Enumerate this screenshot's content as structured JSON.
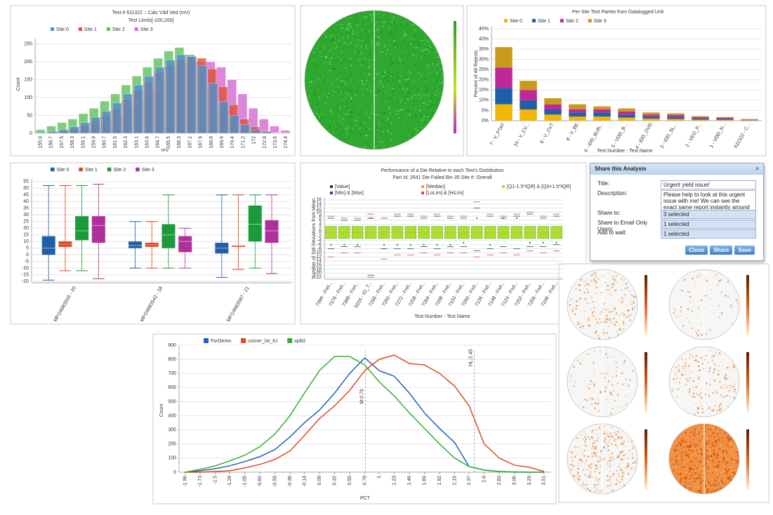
{
  "chart_data": [
    {
      "type": "bar",
      "title": "Test # 611322 :: Calc Vdd Ved (mV)",
      "subtitle": "Test Limits[-100,200]",
      "x_label": "mV",
      "y_label": "Count",
      "categories": [
        "155.9",
        "156.7",
        "157.5",
        "158.3",
        "159.1",
        "159.9",
        "160.7",
        "161.5",
        "162.3",
        "163.1",
        "163.9",
        "164.7",
        "165.5",
        "166.3",
        "167.1",
        "167.9",
        "168.8",
        "169.6",
        "170.4",
        "171.2",
        "172",
        "172.8",
        "173.6",
        "174.4"
      ],
      "series": [
        {
          "name": "Site 0",
          "color": "#4f8fd0",
          "values": [
            2,
            5,
            10,
            18,
            30,
            45,
            62,
            85,
            110,
            135,
            160,
            185,
            205,
            220,
            215,
            190,
            140,
            90,
            50,
            25,
            10,
            4,
            1,
            0
          ]
        },
        {
          "name": "Site 1",
          "color": "#e0503a",
          "values": [
            1,
            3,
            6,
            12,
            22,
            35,
            50,
            70,
            95,
            120,
            145,
            170,
            190,
            205,
            215,
            210,
            180,
            130,
            80,
            40,
            18,
            6,
            2,
            1
          ]
        },
        {
          "name": "Site 2",
          "color": "#5cc05c",
          "values": [
            10,
            20,
            30,
            40,
            55,
            70,
            90,
            110,
            135,
            160,
            185,
            210,
            230,
            240,
            220,
            180,
            130,
            80,
            45,
            22,
            10,
            5,
            2,
            1
          ]
        },
        {
          "name": "Site 3",
          "color": "#d368d3",
          "values": [
            0,
            1,
            2,
            4,
            8,
            14,
            22,
            35,
            50,
            70,
            95,
            120,
            150,
            175,
            195,
            200,
            200,
            185,
            150,
            110,
            70,
            40,
            20,
            8
          ]
        }
      ],
      "ylim": [
        0,
        265
      ],
      "yticks": [
        0,
        50,
        100,
        150,
        200,
        250
      ],
      "grid": true
    },
    {
      "type": "stacked_bar",
      "title": "Per Site Test Pareto from Datalogged Unit",
      "x_label": "Test Number - Test Name",
      "y_label": "Percent of All Rejects",
      "categories": [
        "7 - V_PTAT",
        "10 - V_CV...",
        "9 - V_CVT",
        "8 - V_BE",
        "6 - IDD_BUR...",
        "5 - VDD_B...",
        "4 - IDD_OVD",
        "3 - IDD_SL...",
        "2 - VEO_P...",
        "1 - VDD_N...",
        "611322 - C..."
      ],
      "series": [
        {
          "name": "Site 0",
          "color": "#f2b705",
          "values": [
            8,
            5.5,
            3,
            2,
            2,
            1.5,
            1,
            0.8,
            0.5,
            0.4,
            0.2
          ]
        },
        {
          "name": "Site 1",
          "color": "#1f5fa8",
          "values": [
            8,
            4.5,
            2.5,
            2,
            2,
            1.5,
            1,
            1,
            0.6,
            0.5,
            0.2
          ]
        },
        {
          "name": "Site 2",
          "color": "#c0289a",
          "values": [
            10,
            5,
            2.5,
            1.5,
            1.5,
            1.5,
            1,
            1,
            0.6,
            0.5,
            0.2
          ]
        },
        {
          "name": "Site 3",
          "color": "#c99a1a",
          "values": [
            10,
            4.5,
            3,
            2.5,
            1.5,
            1.5,
            1,
            0.8,
            0.5,
            0.4,
            0.2
          ]
        }
      ],
      "ylim": [
        0,
        46
      ],
      "yticks": [
        {
          "value": 0,
          "label": "0%"
        },
        {
          "value": 5,
          "label": "5%"
        },
        {
          "value": 10,
          "label": "10%"
        },
        {
          "value": 15,
          "label": "15%"
        },
        {
          "value": 20,
          "label": "20%"
        },
        {
          "value": 25,
          "label": "25%"
        },
        {
          "value": 30,
          "label": "30%"
        },
        {
          "value": 35,
          "label": "35%"
        },
        {
          "value": 40,
          "label": "40%"
        },
        {
          "value": 45,
          "label": "45%"
        }
      ],
      "grid": true
    },
    {
      "type": "box",
      "categories": [
        "MFO4683556 - 20",
        "MFO4683542 - 18",
        "MFO4683587 - 21"
      ],
      "series": [
        {
          "name": "Site 0",
          "color": "#1f5fa8",
          "values": [
            [
              -19,
              0,
              5,
              14,
              52
            ],
            [
              -10,
              5,
              7,
              10,
              25
            ],
            [
              -17,
              1,
              5,
              9,
              45
            ]
          ]
        },
        {
          "name": "Site 1",
          "color": "#e0401a",
          "values": [
            [
              -12,
              6,
              8,
              10,
              52
            ],
            [
              -10,
              6,
              7.5,
              9,
              25
            ],
            [
              -11,
              6,
              7,
              7,
              45
            ]
          ]
        },
        {
          "name": "Site 2",
          "color": "#1a9a3a",
          "values": [
            [
              -12,
              11,
              18,
              29,
              52
            ],
            [
              -10,
              5,
              15,
              23,
              45
            ],
            [
              -10,
              10,
              23,
              37,
              45
            ]
          ]
        },
        {
          "name": "Site 3",
          "color": "#b0309a",
          "values": [
            [
              -18,
              9,
              22,
              29,
              53
            ],
            [
              -10,
              2,
              10,
              14,
              20
            ],
            [
              -14,
              9,
              18,
              26,
              45
            ]
          ]
        }
      ],
      "ylim": [
        -21,
        57
      ],
      "yticks": [
        -20,
        -15,
        -10,
        -5,
        0,
        5,
        10,
        15,
        20,
        25,
        30,
        35,
        40,
        45,
        50,
        55
      ],
      "grid": true
    },
    {
      "type": "range",
      "title": "Performance of a Die Relative to each Test's Distribution",
      "subtitle": "Part Id: 2641 Die Failed Bin 35 Site #: Overall",
      "x_label": "Test Number - Test Name",
      "y_label": "Number of Std Deviations from Mean",
      "categories": [
        "7394 - Frel...",
        "7376 - Frel...",
        "7388 - Frel...",
        "5016 - IO_T...",
        "7266 - Frel...",
        "7260 - Frel...",
        "7272 - Frel...",
        "7258 - Frel...",
        "7264 - Frel...",
        "7268 - Frel...",
        "7150 - Frel...",
        "7260 - Frel...",
        "7136 - Frel...",
        "7148 - Frel...",
        "7124 - Frel...",
        "7252 - Frel...",
        "7256 - Frel...",
        "7246 - Frel..."
      ],
      "series": [
        {
          "name": "[Value]",
          "color": "#333333",
          "values": [
            -6,
            -6,
            -6,
            7,
            -6,
            -6,
            -6,
            -6,
            -6,
            -6,
            -5,
            7,
            -6,
            7,
            7,
            -5,
            -5,
            -5
          ]
        },
        {
          "name": "[Median]",
          "color": "#f0a030",
          "values": [
            0,
            0,
            0,
            0,
            0,
            0,
            0,
            0,
            0,
            0,
            0,
            0,
            0,
            0,
            0,
            0,
            0,
            0
          ]
        },
        {
          "name": "[Q1-1.5*IQR] & [Q3+1.5*IQR]",
          "color": "#a8e030",
          "low": [
            -3,
            -3,
            -3,
            -3,
            -3,
            -3,
            -3,
            -3,
            -3,
            -3,
            -3,
            -3,
            -3,
            -3,
            -3,
            -3,
            -3,
            -3
          ],
          "high": [
            3,
            3,
            3,
            3,
            3,
            3,
            3,
            3,
            3,
            3,
            3,
            3,
            3,
            3,
            3,
            3,
            3,
            3
          ]
        },
        {
          "name": "[Min] & [Max]",
          "color": "#1f3f9f",
          "low": [
            -8,
            -7,
            -7,
            -21,
            -8,
            -8,
            -8,
            -7,
            -8,
            -7,
            -7,
            -9,
            -8,
            -7,
            -8,
            -7,
            -7,
            -6
          ],
          "high": [
            7,
            6,
            6,
            7,
            7,
            8,
            8,
            7,
            8,
            7,
            7,
            12,
            8,
            7,
            8,
            9,
            7,
            8
          ]
        },
        {
          "name": "[LoLim] & [HiLim]",
          "color": "#e04040",
          "low": [
            -12,
            -10,
            -10,
            -22,
            -13,
            -11,
            -11,
            -10,
            -11,
            -10,
            -10,
            -12,
            -11,
            -10,
            -11,
            -9,
            -10,
            -9
          ],
          "high": [
            8,
            7,
            7,
            9,
            7,
            9,
            9,
            8,
            9,
            8,
            8,
            15,
            9,
            8,
            9,
            10,
            8,
            9
          ]
        }
      ],
      "ylim": [
        -23,
        17
      ],
      "yticks": [
        16,
        14,
        12,
        10,
        8,
        6,
        4,
        2,
        0,
        -2,
        -4,
        -6,
        -8,
        -10,
        -12,
        -14,
        -16,
        -18,
        -20,
        -22
      ],
      "grid": true
    },
    {
      "type": "line",
      "x_label": "PCT",
      "y_label": "Count",
      "x": [
        -1.96,
        -1.73,
        -1.5,
        -1.28,
        -1.05,
        -0.82,
        -0.59,
        -0.36,
        -0.14,
        0.09,
        0.32,
        0.55,
        0.78,
        1,
        1.23,
        1.46,
        1.69,
        1.92,
        2.15,
        2.37,
        2.6,
        2.83,
        3.06,
        3.29,
        3.51
      ],
      "series": [
        {
          "name": "ForDemo",
          "color": "#1f5fbf",
          "values": [
            0,
            10,
            25,
            45,
            75,
            110,
            160,
            250,
            350,
            440,
            560,
            700,
            810,
            720,
            680,
            560,
            420,
            310,
            210,
            40,
            15,
            5,
            2,
            0,
            0
          ]
        },
        {
          "name": "corner_lot_fci",
          "color": "#e04a1a",
          "values": [
            0,
            0,
            5,
            10,
            30,
            55,
            90,
            150,
            260,
            380,
            470,
            580,
            720,
            800,
            830,
            770,
            760,
            700,
            610,
            470,
            200,
            100,
            50,
            35,
            5
          ]
        },
        {
          "name": "split2",
          "color": "#30b030",
          "values": [
            0,
            20,
            45,
            80,
            120,
            180,
            270,
            400,
            560,
            720,
            820,
            820,
            760,
            640,
            540,
            420,
            310,
            200,
            100,
            40,
            15,
            5,
            0,
            0,
            0
          ]
        }
      ],
      "annotations": [
        {
          "text": "M:0.79",
          "x": 0.79,
          "color": "#2aa0a0"
        },
        {
          "text": "HL:2.45",
          "x": 2.45,
          "color": "#e04a1a"
        }
      ],
      "xlim": [
        -2.05,
        3.62
      ],
      "xticks": [
        -1.96,
        -1.73,
        -1.5,
        -1.28,
        -1.05,
        -0.82,
        -0.59,
        -0.36,
        -0.14,
        0.09,
        0.32,
        0.55,
        0.78,
        1,
        1.23,
        1.46,
        1.69,
        1.92,
        2.15,
        2.37,
        2.6,
        2.83,
        3.06,
        3.29,
        3.51
      ],
      "ylim": [
        0,
        900
      ],
      "yticks": [
        0,
        100,
        200,
        300,
        400,
        500,
        600,
        700,
        800,
        900
      ],
      "grid": true
    }
  ],
  "dialog": {
    "title": "Share this Analysis",
    "close_icon": "×",
    "fields": [
      {
        "label": "Title:",
        "value": "Urgent yield issue!"
      },
      {
        "label": "Description:",
        "value": "Please help to look at this urgent issue with me! We can see the exact same report instantly around the world!"
      },
      {
        "label": "Share to:",
        "value": "3 selected"
      },
      {
        "label": "Share to Email Only Users:",
        "value": "1 selected"
      },
      {
        "label": "Add to wall:",
        "value": "1 selected"
      }
    ],
    "buttons": [
      "Close",
      "Share",
      "Save"
    ]
  }
}
